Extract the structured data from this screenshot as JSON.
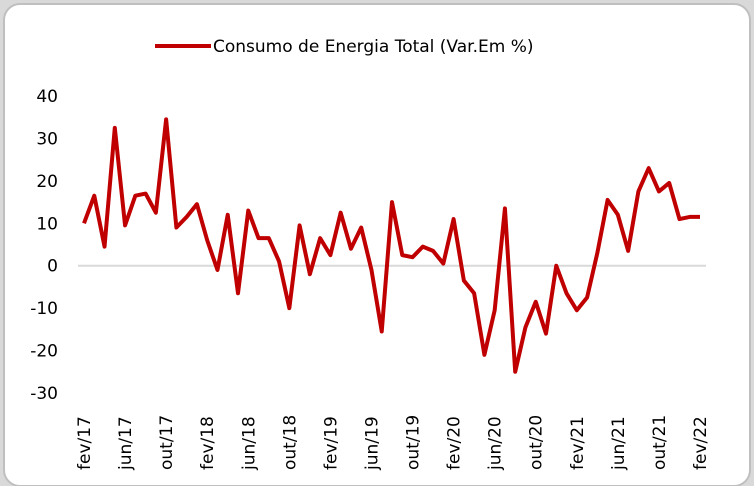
{
  "chart_data": {
    "type": "line",
    "categories": [
      "fev/17",
      null,
      null,
      null,
      "jun/17",
      null,
      null,
      null,
      "out/17",
      null,
      null,
      null,
      "fev/18",
      null,
      null,
      null,
      "jun/18",
      null,
      null,
      null,
      "out/18",
      null,
      null,
      null,
      "fev/19",
      null,
      null,
      null,
      "jun/19",
      null,
      null,
      null,
      "out/19",
      null,
      null,
      null,
      "fev/20",
      null,
      null,
      null,
      "jun/20",
      null,
      null,
      null,
      "out/20",
      null,
      null,
      null,
      "fev/21",
      null,
      null,
      null,
      "jun/21",
      null,
      null,
      null,
      "out/21",
      null,
      null,
      null,
      "fev/22"
    ],
    "series": [
      {
        "name": "Consumo de Energia Total  (Var.Em %)",
        "color": "#c00000",
        "values": [
          10,
          16.5,
          4.5,
          32.5,
          9.5,
          16.5,
          17,
          12.5,
          34.5,
          9,
          11.5,
          14.5,
          6,
          -1,
          12,
          -6.5,
          13,
          6.5,
          6.5,
          1,
          -10,
          9.5,
          -2,
          6.5,
          2.5,
          12.5,
          4,
          9,
          -1,
          -15.5,
          15,
          2.5,
          2,
          4.5,
          3.5,
          0.5,
          11,
          -3.5,
          -6.5,
          -21,
          -10.5,
          13.5,
          -25,
          -14.5,
          -8.5,
          -16,
          0,
          -6.5,
          -10.5,
          -7.5,
          3,
          15.5,
          12,
          3.5,
          17.5,
          23,
          17.5,
          19.5,
          11,
          11.5,
          11.5
        ]
      }
    ],
    "ylim": [
      -30,
      40
    ],
    "yticks": [
      40,
      30,
      20,
      10,
      0,
      -10,
      -20,
      -30
    ],
    "legend": "top"
  }
}
